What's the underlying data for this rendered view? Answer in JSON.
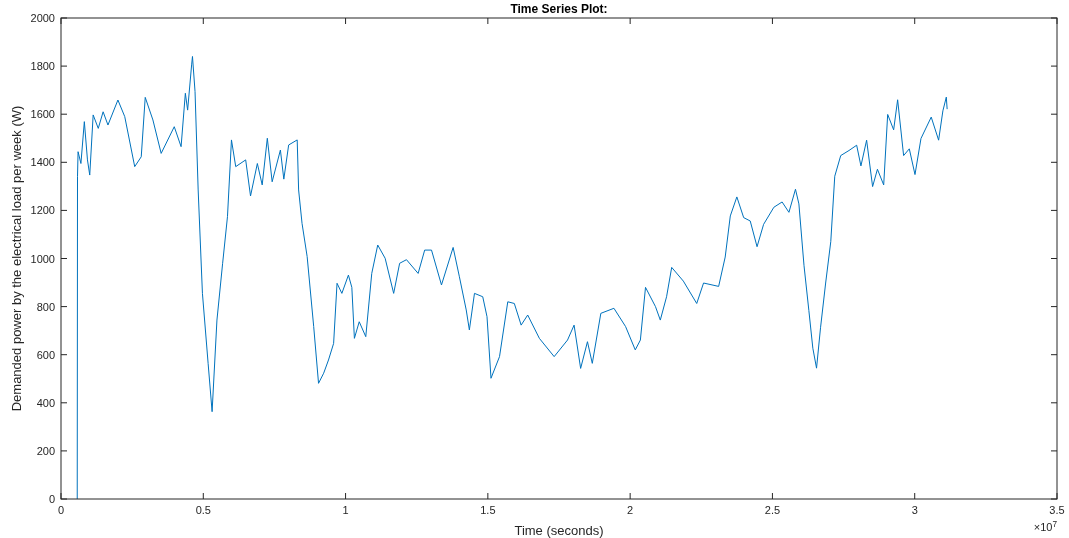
{
  "chart_data": {
    "type": "line",
    "title": "Time Series Plot:",
    "xlabel": "Time (seconds)",
    "ylabel": "Demanded power by the electrical load per week (W)",
    "annotations": [
      "×10$^{7}$"
    ],
    "xlim": [
      0,
      3.5
    ],
    "xticks": [
      0,
      0.5,
      1,
      1.5,
      2,
      2.5,
      3,
      3.5
    ],
    "ylim": [
      0,
      2000
    ],
    "yticks": [
      0,
      200,
      400,
      600,
      800,
      1000,
      1200,
      1400,
      1600,
      1800,
      2000
    ],
    "grid": false,
    "marker": "none",
    "line_style": "solid",
    "series": [
      {
        "color": "#0072bd",
        "x": [
          0.057,
          0.058,
          0.06,
          0.07,
          0.082,
          0.093,
          0.101,
          0.113,
          0.131,
          0.148,
          0.165,
          0.2,
          0.224,
          0.259,
          0.282,
          0.296,
          0.323,
          0.352,
          0.398,
          0.422,
          0.437,
          0.445,
          0.459,
          0.462,
          0.471,
          0.482,
          0.497,
          0.517,
          0.531,
          0.548,
          0.568,
          0.585,
          0.599,
          0.614,
          0.649,
          0.666,
          0.69,
          0.707,
          0.725,
          0.742,
          0.771,
          0.783,
          0.8,
          0.83,
          0.835,
          0.847,
          0.865,
          0.888,
          0.905,
          0.923,
          0.94,
          0.958,
          0.97,
          0.987,
          1.01,
          1.022,
          1.031,
          1.048,
          1.071,
          1.092,
          1.113,
          1.139,
          1.169,
          1.19,
          1.214,
          1.255,
          1.278,
          1.302,
          1.337,
          1.378,
          1.4,
          1.424,
          1.435,
          1.453,
          1.482,
          1.497,
          1.511,
          1.541,
          1.57,
          1.593,
          1.617,
          1.64,
          1.681,
          1.733,
          1.78,
          1.803,
          1.826,
          1.85,
          1.867,
          1.897,
          1.943,
          1.984,
          2.018,
          2.036,
          2.054,
          2.089,
          2.106,
          2.128,
          2.146,
          2.187,
          2.234,
          2.258,
          2.311,
          2.334,
          2.352,
          2.375,
          2.399,
          2.422,
          2.446,
          2.469,
          2.505,
          2.534,
          2.558,
          2.581,
          2.593,
          2.611,
          2.628,
          2.642,
          2.655,
          2.669,
          2.687,
          2.705,
          2.719,
          2.74,
          2.769,
          2.796,
          2.811,
          2.831,
          2.852,
          2.869,
          2.891,
          2.905,
          2.926,
          2.94,
          2.961,
          2.981,
          3.001,
          3.022,
          3.058,
          3.084,
          3.099,
          3.111,
          3.114
        ],
        "values": [
          0,
          1340,
          1444,
          1395,
          1569,
          1410,
          1347,
          1597,
          1541,
          1610,
          1555,
          1659,
          1590,
          1382,
          1423,
          1670,
          1576,
          1437,
          1548,
          1465,
          1687,
          1617,
          1805,
          1840,
          1694,
          1285,
          855,
          564,
          363,
          744,
          980,
          1174,
          1493,
          1382,
          1410,
          1260,
          1395,
          1306,
          1500,
          1319,
          1451,
          1330,
          1472,
          1493,
          1285,
          1146,
          1008,
          717,
          481,
          523,
          578,
          647,
          897,
          855,
          931,
          880,
          668,
          737,
          675,
          938,
          1056,
          1001,
          855,
          980,
          995,
          938,
          1035,
          1035,
          890,
          1046,
          924,
          786,
          703,
          855,
          841,
          758,
          502,
          592,
          820,
          813,
          723,
          765,
          668,
          592,
          661,
          723,
          543,
          654,
          564,
          772,
          793,
          717,
          620,
          661,
          880,
          800,
          744,
          841,
          963,
          906,
          813,
          898,
          884,
          1006,
          1177,
          1256,
          1170,
          1156,
          1049,
          1142,
          1213,
          1235,
          1192,
          1288,
          1227,
          970,
          784,
          627,
          544,
          712,
          898,
          1070,
          1342,
          1428,
          1449,
          1471,
          1385,
          1492,
          1299,
          1371,
          1306,
          1599,
          1535,
          1660,
          1428,
          1456,
          1349,
          1499,
          1588,
          1492,
          1614,
          1671,
          1621
        ]
      }
    ]
  }
}
